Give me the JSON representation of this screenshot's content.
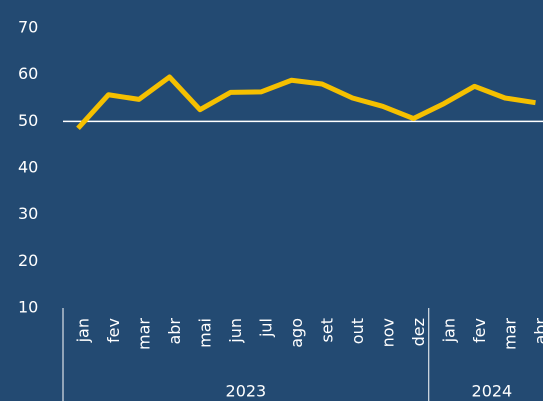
{
  "chart_data": {
    "type": "line",
    "categories": [
      "jan",
      "fev",
      "mar",
      "abr",
      "mai",
      "jun",
      "jul",
      "ago",
      "set",
      "out",
      "nov",
      "dez",
      "jan",
      "fev",
      "mar",
      "abr"
    ],
    "year_groups": [
      {
        "label": "2023",
        "count": 12
      },
      {
        "label": "2024",
        "count": 4
      }
    ],
    "series": [
      {
        "color": "#f5c000",
        "values": [
          48.5,
          55.7,
          54.7,
          59.5,
          52.5,
          56.2,
          56.3,
          58.8,
          58.0,
          55.0,
          53.2,
          50.6,
          53.8,
          57.5,
          55.0,
          54.0
        ]
      }
    ],
    "ylim": [
      10,
      70
    ],
    "yticks": [
      10,
      20,
      30,
      40,
      50,
      60,
      70
    ],
    "reference_line": 50,
    "reference_color": "#ffffff"
  }
}
